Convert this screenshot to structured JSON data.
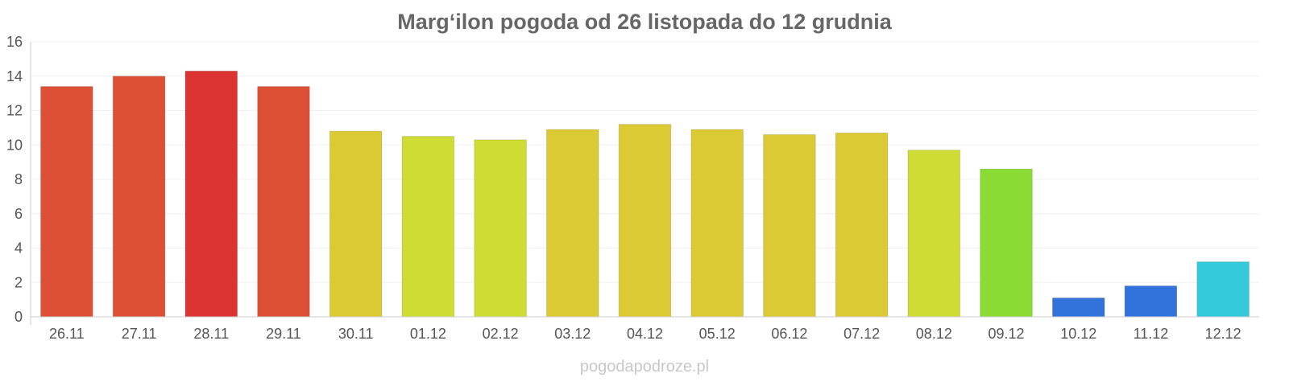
{
  "chart_data": {
    "type": "bar",
    "title": "Marg‘ilon pogoda od 26 listopada do 12 grudnia",
    "xlabel": "",
    "ylabel": "",
    "ylim": [
      0,
      16
    ],
    "yticks": [
      0,
      2,
      4,
      6,
      8,
      10,
      12,
      14,
      16
    ],
    "grid": true,
    "categories": [
      "26.11",
      "27.11",
      "28.11",
      "29.11",
      "30.11",
      "01.12",
      "02.12",
      "03.12",
      "04.12",
      "05.12",
      "06.12",
      "07.12",
      "08.12",
      "09.12",
      "10.12",
      "11.12",
      "12.12"
    ],
    "values": [
      13.4,
      14.0,
      14.3,
      13.4,
      10.8,
      10.5,
      10.3,
      10.9,
      11.2,
      10.9,
      10.6,
      10.7,
      9.7,
      8.6,
      1.1,
      1.8,
      3.2
    ],
    "colors": [
      "#dd5035",
      "#dd5035",
      "#dc3433",
      "#dd5035",
      "#dbca34",
      "#cfdc34",
      "#cfdc34",
      "#dbca34",
      "#dbca34",
      "#dbca34",
      "#dbca34",
      "#dbca34",
      "#cfdc34",
      "#8adc34",
      "#3273db",
      "#3273db",
      "#34cadb"
    ]
  },
  "watermark": "pogodapodroze.pl"
}
